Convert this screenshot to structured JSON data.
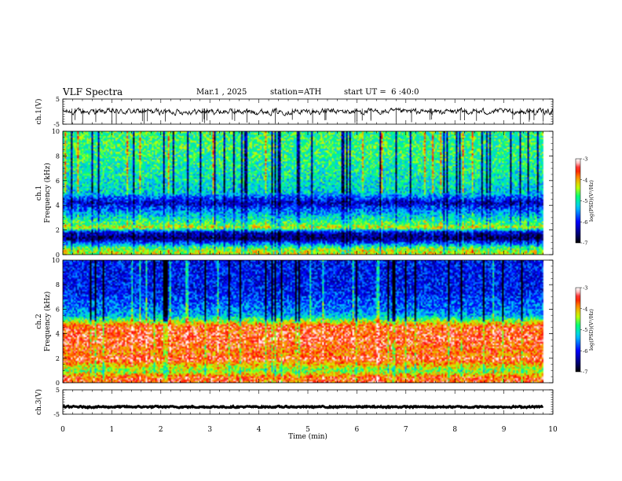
{
  "header": {
    "title": "VLF Spectra",
    "date": "Mar.1 , 2025",
    "station": "station=ATH",
    "start_ut": "start UT =  6 :40:0"
  },
  "colors": {
    "background": "#ffffff",
    "axis": "#000000",
    "colormap": [
      "#000000",
      "#00007f",
      "#0000ff",
      "#00c8ff",
      "#00ff80",
      "#c8ff00",
      "#ff8000",
      "#ff0000",
      "#ffc8c8",
      "#ffffff"
    ]
  },
  "chart_data": [
    {
      "type": "line",
      "name": "ch1-waveform",
      "ylabel": "ch.1(V)",
      "ylim": [
        -5,
        5
      ],
      "yticks": [
        "5",
        "-5"
      ],
      "xlim": [
        0,
        10
      ],
      "signal": {
        "mean": 0,
        "noise_amplitude": 0.9,
        "spike_count": 40
      }
    },
    {
      "type": "heatmap",
      "name": "ch1-spectrogram",
      "ylabel": "Frequency (kHz)",
      "channel_label": "ch.1",
      "ylim": [
        0,
        10
      ],
      "yticks": [
        "0",
        "2",
        "4",
        "6",
        "8",
        "10"
      ],
      "xlim": [
        0,
        9.8
      ],
      "zlim": [
        -7,
        -3
      ],
      "colorbar": {
        "label": "log(PSD)(V²/Hz)",
        "ticks": [
          "-3",
          "-4",
          "-5",
          "-6",
          "-7"
        ]
      },
      "bands_khz": [
        {
          "f": 0.3,
          "level": -4.3
        },
        {
          "f": 0.6,
          "level": -4.8
        },
        {
          "f": 1.3,
          "level": -6.6
        },
        {
          "f": 1.8,
          "level": -6.2
        },
        {
          "f": 2.2,
          "level": -4.2
        },
        {
          "f": 2.5,
          "level": -4.7
        },
        {
          "f": 3.5,
          "level": -5.5
        },
        {
          "f": 3.9,
          "level": -5.9
        },
        {
          "f": 4.2,
          "level": -6.3
        },
        {
          "f": 5.0,
          "level": -5.2
        },
        {
          "f": 6.5,
          "level": -5.0
        },
        {
          "f": 8.5,
          "level": -4.8
        }
      ]
    },
    {
      "type": "heatmap",
      "name": "ch2-spectrogram",
      "ylabel": "Frequency (kHz)",
      "channel_label": "ch.2",
      "ylim": [
        0,
        10
      ],
      "yticks": [
        "0",
        "2",
        "4",
        "6",
        "8",
        "10"
      ],
      "xlim": [
        0,
        9.8
      ],
      "zlim": [
        -7,
        -3
      ],
      "colorbar": {
        "label": "log(PSD)(V²/Hz)",
        "ticks": [
          "-3",
          "-4",
          "-5",
          "-6",
          "-7"
        ]
      },
      "bands_khz": [
        {
          "f": 0.4,
          "level": -3.6
        },
        {
          "f": 1.0,
          "level": -4.6
        },
        {
          "f": 2.0,
          "level": -3.4
        },
        {
          "f": 2.3,
          "level": -3.8
        },
        {
          "f": 3.5,
          "level": -3.5
        },
        {
          "f": 4.6,
          "level": -3.6
        },
        {
          "f": 5.5,
          "level": -5.4
        },
        {
          "f": 7.5,
          "level": -6.0
        }
      ]
    },
    {
      "type": "line",
      "name": "ch3-waveform",
      "ylabel": "ch.3(V)",
      "ylim": [
        -5,
        5
      ],
      "yticks": [
        "5",
        "-5"
      ],
      "xlim": [
        0,
        9.8
      ],
      "signal": {
        "mean": -2.0,
        "noise_amplitude": 0.25,
        "spike_count": 0
      }
    }
  ],
  "xaxis": {
    "label": "Time (min)",
    "range": [
      0,
      10
    ],
    "ticks": [
      "0",
      "1",
      "2",
      "3",
      "4",
      "5",
      "6",
      "7",
      "8",
      "9",
      "10"
    ]
  }
}
